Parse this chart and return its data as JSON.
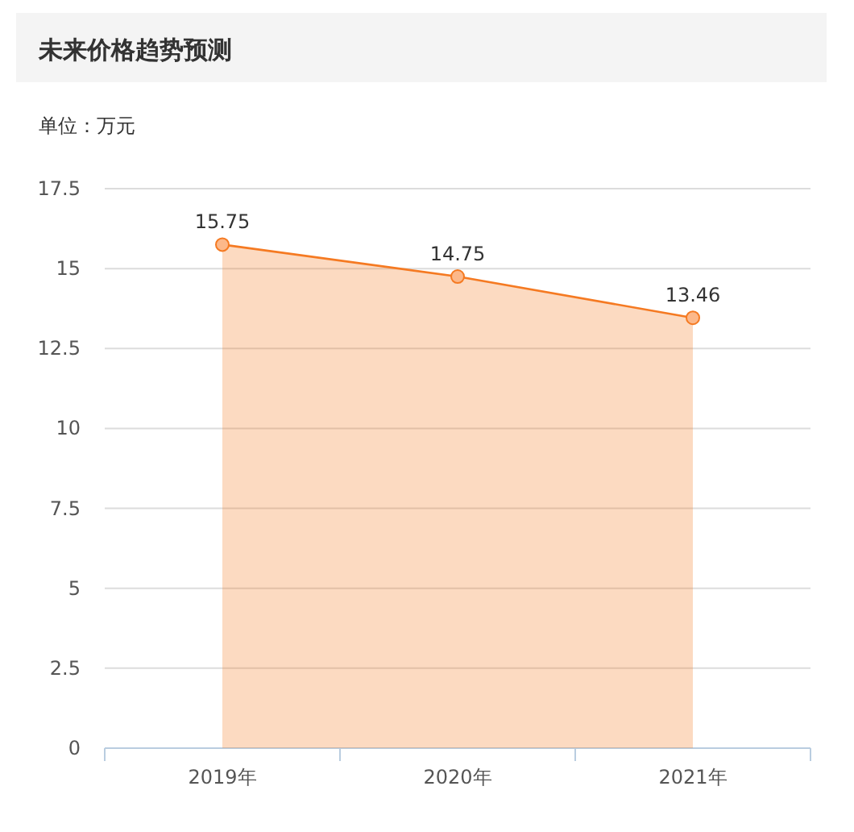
{
  "chart_data": {
    "type": "area",
    "title": "未来价格趋势预测",
    "subtitle": "单位：万元",
    "categories": [
      "2019年",
      "2020年",
      "2021年"
    ],
    "series": [
      {
        "color": "#f57a22",
        "values": [
          15.75,
          14.75,
          13.46
        ]
      }
    ],
    "ylim": [
      0,
      17.5
    ],
    "yticks": [
      0,
      2.5,
      5,
      7.5,
      10,
      12.5,
      15,
      17.5
    ],
    "grid": "y",
    "marker": "circle",
    "data_labels": true
  }
}
